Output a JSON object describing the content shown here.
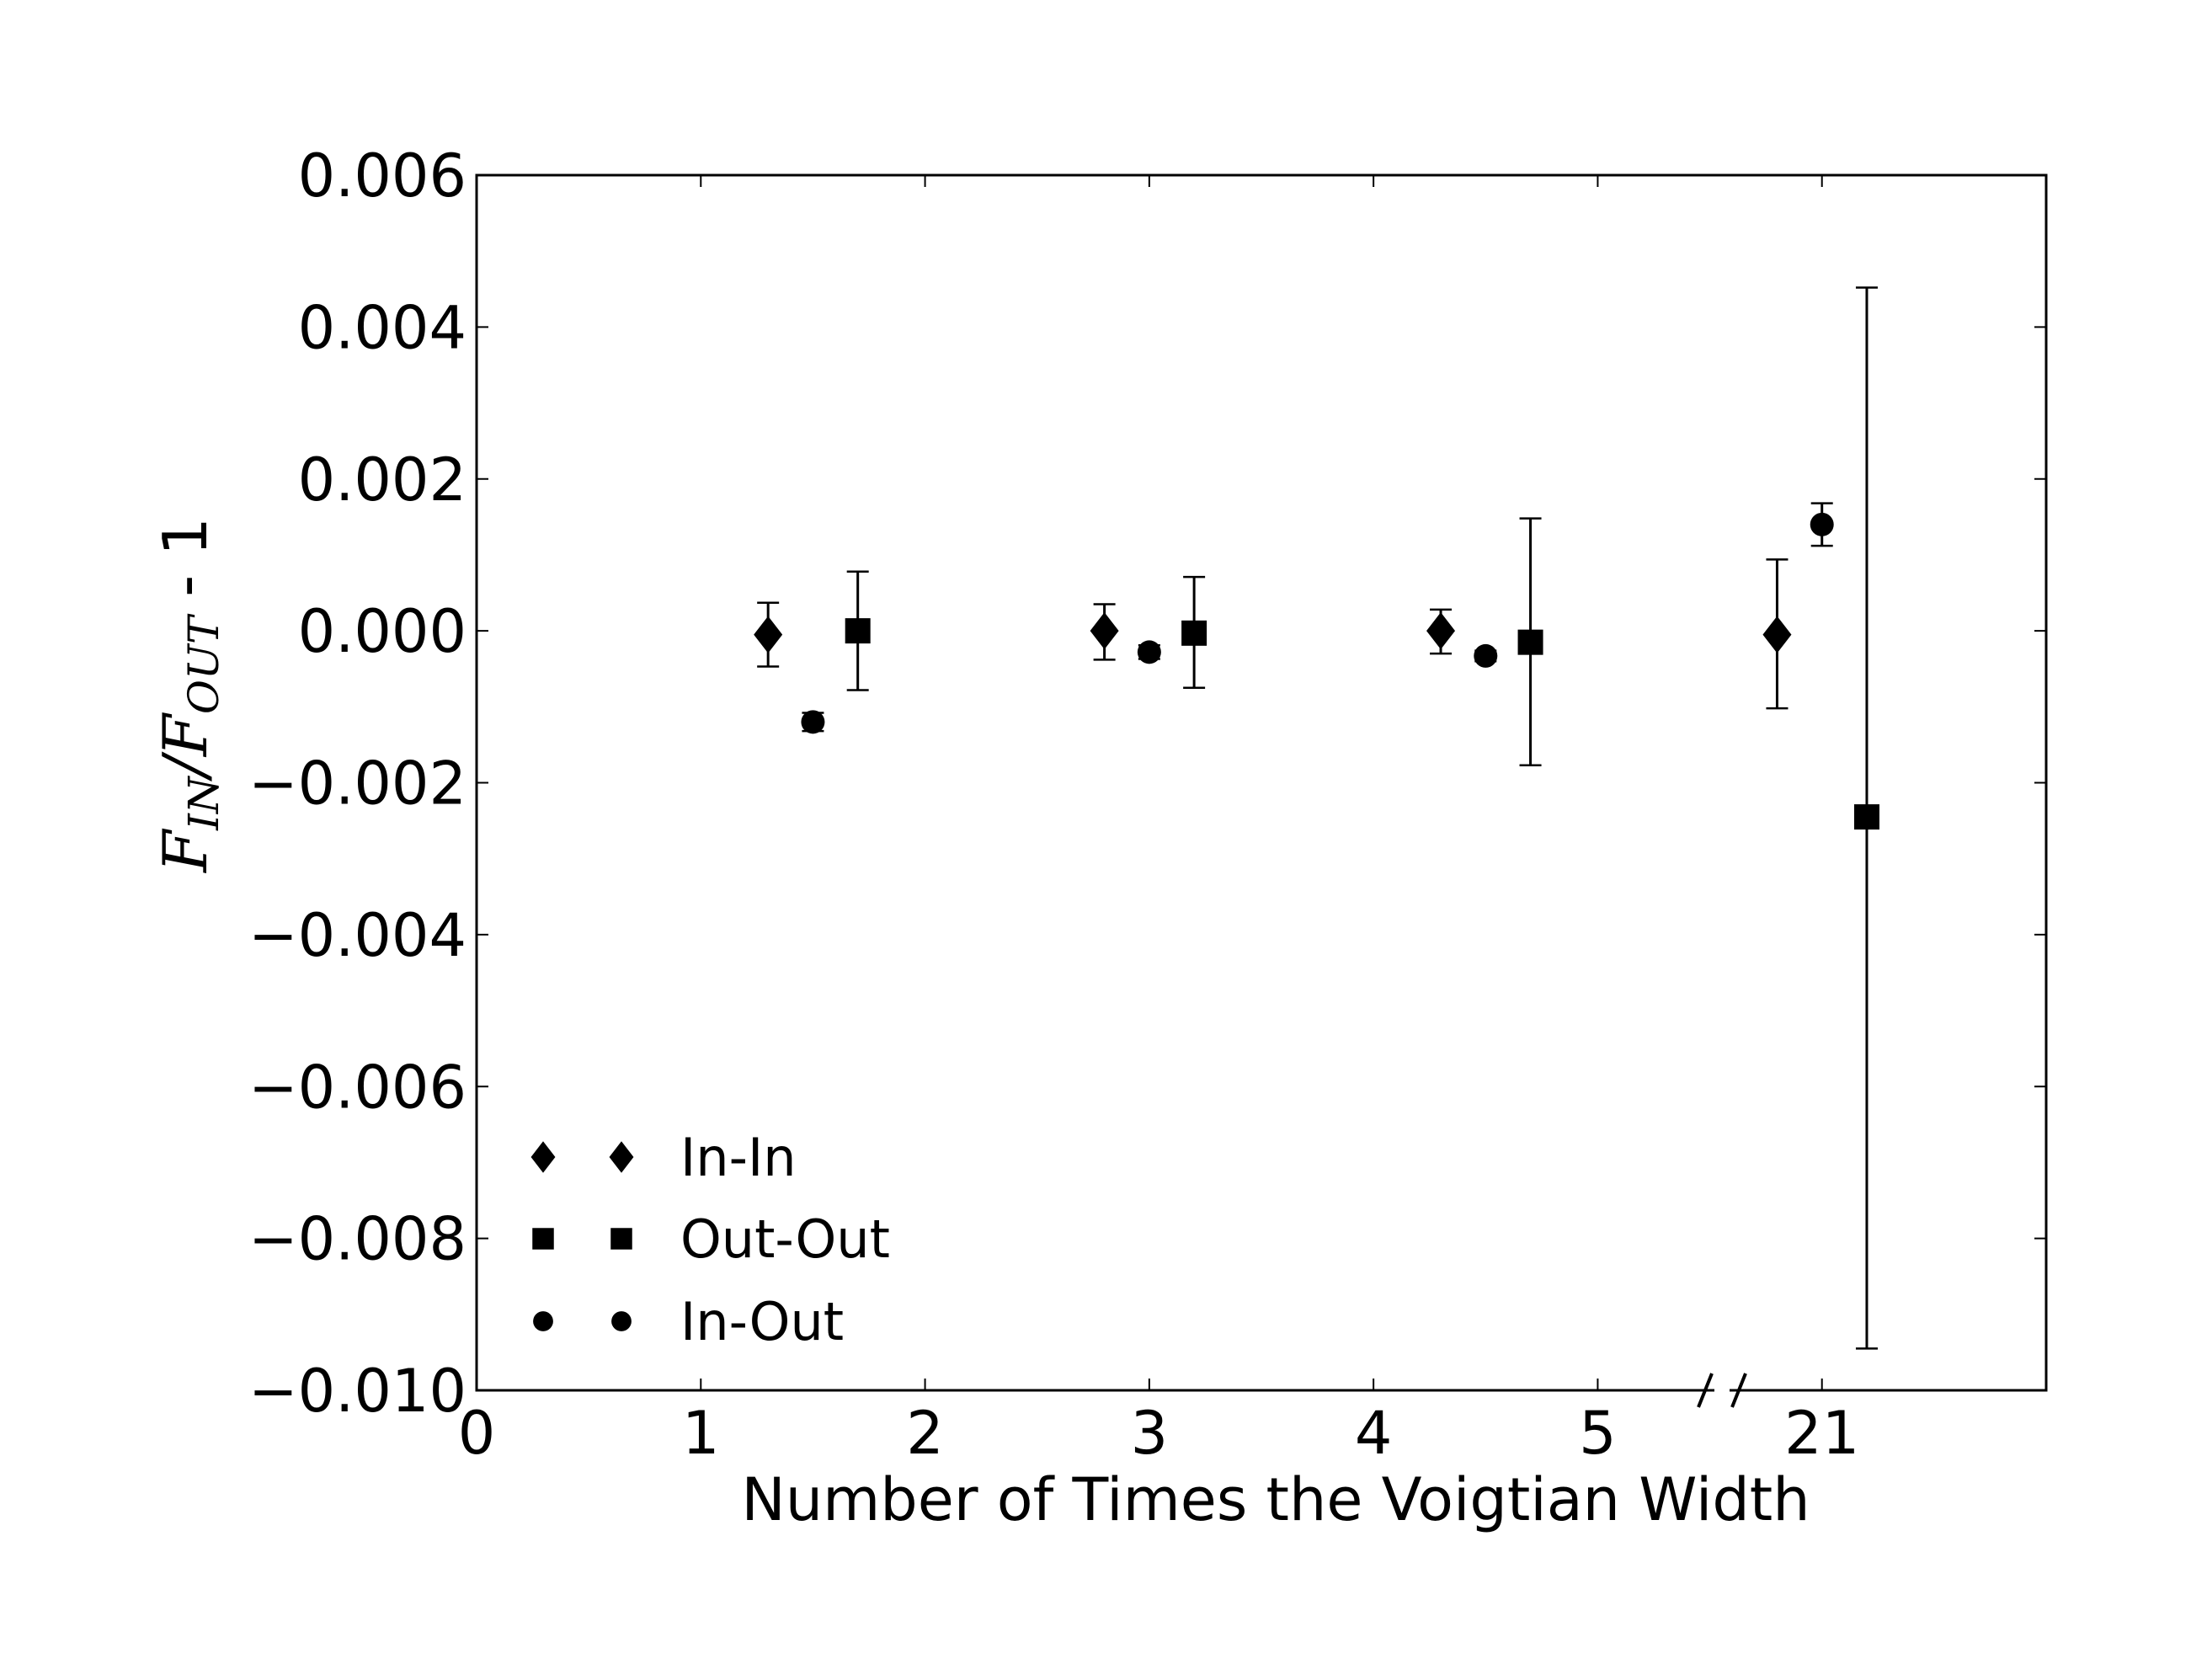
{
  "chart_data": {
    "type": "scatter",
    "title": "",
    "xlabel": "Number of Times the Voigtian Width",
    "ylabel": {
      "f_in": "F",
      "sub_in": "IN",
      "slash": "/",
      "f_out": "F",
      "sub_out": "OUT",
      "suffix": " - 1"
    },
    "xlim": [
      0,
      7
    ],
    "ylim": [
      -0.01,
      0.006
    ],
    "x_axis_break": "between 5 and 21",
    "x_ticks": [
      {
        "pos": 0,
        "label": "0"
      },
      {
        "pos": 1,
        "label": "1"
      },
      {
        "pos": 2,
        "label": "2"
      },
      {
        "pos": 3,
        "label": "3"
      },
      {
        "pos": 4,
        "label": "4"
      },
      {
        "pos": 5,
        "label": "5"
      },
      {
        "pos": 6,
        "label": "21"
      }
    ],
    "y_ticks": [
      {
        "value": 0.006,
        "label": "0.006"
      },
      {
        "value": 0.004,
        "label": "0.004"
      },
      {
        "value": 0.002,
        "label": "0.002"
      },
      {
        "value": 0.0,
        "label": "0.000"
      },
      {
        "value": -0.002,
        "label": "−0.002"
      },
      {
        "value": -0.004,
        "label": "−0.004"
      },
      {
        "value": -0.006,
        "label": "−0.006"
      },
      {
        "value": -0.008,
        "label": "−0.008"
      },
      {
        "value": -0.01,
        "label": "−0.010"
      }
    ],
    "grid": false,
    "legend_position": "lower-left",
    "series": [
      {
        "name": "In-In",
        "marker": "diamond",
        "color": "#000000",
        "points": [
          {
            "x": 1.3,
            "y": -5e-05,
            "err_low": 0.00042,
            "err_high": 0.00042
          },
          {
            "x": 2.8,
            "y": 0.0,
            "err_low": 0.00038,
            "err_high": 0.00035
          },
          {
            "x": 4.3,
            "y": 0.0,
            "err_low": 0.0003,
            "err_high": 0.00028
          },
          {
            "x": 5.8,
            "y": -5e-05,
            "err_low": 0.00097,
            "err_high": 0.00099
          }
        ]
      },
      {
        "name": "Out-Out",
        "marker": "square",
        "color": "#000000",
        "points": [
          {
            "x": 1.7,
            "y": 0.0,
            "err_low": 0.00078,
            "err_high": 0.00078
          },
          {
            "x": 3.2,
            "y": -3e-05,
            "err_low": 0.00072,
            "err_high": 0.00074
          },
          {
            "x": 4.7,
            "y": -0.00015,
            "err_low": 0.00162,
            "err_high": 0.00163
          },
          {
            "x": 6.2,
            "y": -0.00245,
            "err_low": 0.007,
            "err_high": 0.00697
          }
        ]
      },
      {
        "name": "In-Out",
        "marker": "circle",
        "color": "#000000",
        "points": [
          {
            "x": 1.5,
            "y": -0.0012,
            "err_low": 0.00012,
            "err_high": 0.00012
          },
          {
            "x": 3.0,
            "y": -0.00028,
            "err_low": 9e-05,
            "err_high": 9e-05
          },
          {
            "x": 4.5,
            "y": -0.00033,
            "err_low": 7e-05,
            "err_high": 7e-05
          },
          {
            "x": 6.0,
            "y": 0.0014,
            "err_low": 0.00028,
            "err_high": 0.00028
          }
        ]
      }
    ]
  }
}
